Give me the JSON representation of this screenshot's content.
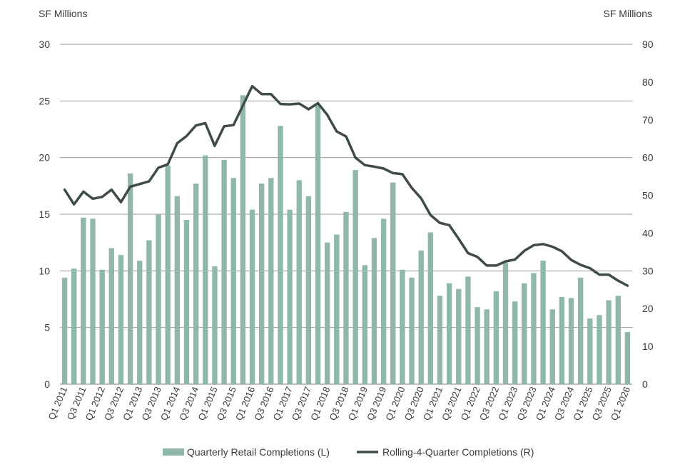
{
  "chart_data": {
    "type": "bar",
    "y_left_label": "SF Millions",
    "y_right_label": "SF Millions",
    "y_left_lim": [
      0,
      30
    ],
    "y_right_lim": [
      0,
      90
    ],
    "y_left_ticks": [
      0,
      5,
      10,
      15,
      20,
      25,
      30
    ],
    "y_right_ticks": [
      0,
      10,
      20,
      30,
      40,
      50,
      60,
      70,
      80,
      90
    ],
    "grid": true,
    "legend_position": "bottom",
    "colors": {
      "bars": "#8fb8aa",
      "line": "#3f4a4a",
      "grid": "#9a9a9a"
    },
    "categories": [
      "Q1 2011",
      "Q2 2011",
      "Q3 2011",
      "Q4 2011",
      "Q1 2012",
      "Q2 2012",
      "Q3 2012",
      "Q4 2012",
      "Q1 2013",
      "Q2 2013",
      "Q3 2013",
      "Q4 2013",
      "Q1 2014",
      "Q2 2014",
      "Q3 2014",
      "Q4 2014",
      "Q1 2015",
      "Q2 2015",
      "Q3 2015",
      "Q4 2015",
      "Q1 2016",
      "Q2 2016",
      "Q3 2016",
      "Q4 2016",
      "Q1 2017",
      "Q2 2017",
      "Q3 2017",
      "Q4 2017",
      "Q1 2018",
      "Q2 2018",
      "Q3 2018",
      "Q4 2018",
      "Q1 2019",
      "Q2 2019",
      "Q3 2019",
      "Q4 2019",
      "Q1 2020",
      "Q2 2020",
      "Q3 2020",
      "Q4 2020",
      "Q1 2021",
      "Q2 2021",
      "Q3 2021",
      "Q4 2021",
      "Q1 2022",
      "Q2 2022",
      "Q3 2022",
      "Q4 2022",
      "Q1 2023",
      "Q2 2023",
      "Q3 2023",
      "Q4 2023",
      "Q1 2024",
      "Q2 2024",
      "Q3 2024",
      "Q4 2024",
      "Q1 2025",
      "Q2 2025",
      "Q3 2025",
      "Q4 2025",
      "Q1 2026"
    ],
    "x_tick_labels": [
      "Q1 2011",
      "Q3 2011",
      "Q1 2012",
      "Q3 2012",
      "Q1 2013",
      "Q3 2013",
      "Q1 2014",
      "Q3 2014",
      "Q1 2015",
      "Q3 2015",
      "Q1 2016",
      "Q3 2016",
      "Q1 2017",
      "Q3 2017",
      "Q1 2018",
      "Q3 2018",
      "Q1 2019",
      "Q3 2019",
      "Q1 2020",
      "Q3 2020",
      "Q1 2021",
      "Q3 2021",
      "Q1 2022",
      "Q3 2022",
      "Q1 2023",
      "Q3 2023",
      "Q1 2024",
      "Q3 2024",
      "Q1 2025",
      "Q3 2025",
      "Q1 2026"
    ],
    "series": [
      {
        "name": "Quarterly Retail Completions (L)",
        "type": "bar",
        "axis": "left",
        "values": [
          9.4,
          10.2,
          14.7,
          14.6,
          10.1,
          12.0,
          11.4,
          18.6,
          10.9,
          12.7,
          15.0,
          19.3,
          16.6,
          14.5,
          17.7,
          20.2,
          10.4,
          19.8,
          18.2,
          25.5,
          15.4,
          17.7,
          18.2,
          22.8,
          15.4,
          18.0,
          16.6,
          24.6,
          12.5,
          13.2,
          15.2,
          18.9,
          10.5,
          12.9,
          14.6,
          17.8,
          10.1,
          9.4,
          11.8,
          13.4,
          7.8,
          8.9,
          8.4,
          9.5,
          6.8,
          6.6,
          8.2,
          10.7,
          7.3,
          8.9,
          9.8,
          10.9,
          6.6,
          7.7,
          7.6,
          9.4,
          5.8,
          6.1,
          7.4,
          7.8,
          4.6
        ]
      },
      {
        "name": "Rolling-4-Quarter Completions (R)",
        "type": "line",
        "axis": "right",
        "values": [
          51.5,
          47.6,
          51.0,
          49.1,
          49.6,
          51.5,
          48.2,
          52.3,
          53.0,
          53.7,
          57.3,
          58.2,
          63.8,
          65.7,
          68.5,
          69.1,
          63.1,
          68.3,
          68.6,
          73.8,
          78.9,
          76.8,
          76.8,
          74.2,
          74.1,
          74.3,
          72.8,
          74.4,
          71.3,
          66.9,
          65.6,
          60.0,
          58.0,
          57.6,
          57.1,
          55.9,
          55.6,
          52.0,
          49.2,
          44.8,
          42.7,
          42.1,
          38.5,
          34.7,
          33.7,
          31.4,
          31.4,
          32.5,
          33.0,
          35.3,
          36.8,
          37.1,
          36.4,
          35.2,
          32.9,
          31.6,
          30.7,
          29.0,
          29.0,
          27.4,
          26.1
        ]
      }
    ]
  }
}
